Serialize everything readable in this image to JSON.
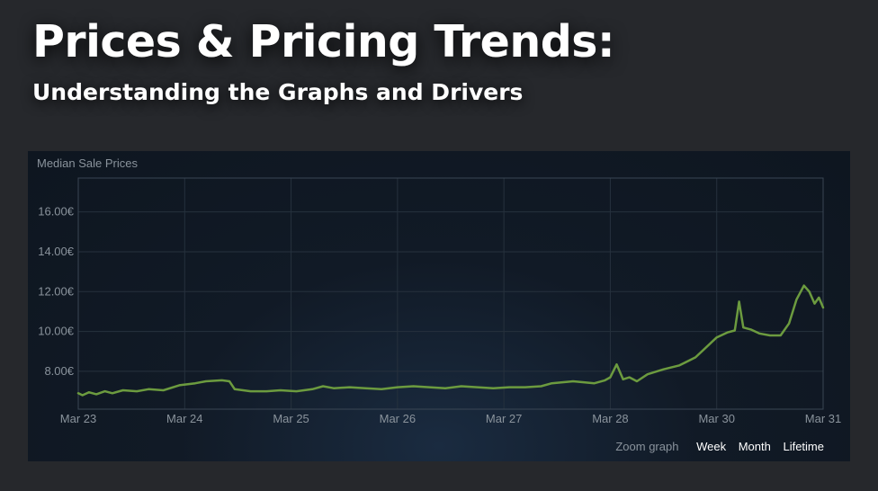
{
  "page": {
    "title": "Prices & Pricing Trends:",
    "subtitle": "Understanding the Graphs and Drivers"
  },
  "chart": {
    "label": "Median Sale Prices",
    "zoom_label": "Zoom graph",
    "zoom_options": [
      "Week",
      "Month",
      "Lifetime"
    ],
    "line_color": "#6c9b3f"
  },
  "chart_data": {
    "type": "line",
    "title": "Median Sale Prices",
    "xlabel": "",
    "ylabel": "",
    "x_tick_labels": [
      "Mar 23",
      "Mar 24",
      "Mar 25",
      "Mar 26",
      "Mar 27",
      "Mar 28",
      "Mar 30",
      "Mar 31"
    ],
    "y_tick_labels": [
      "8.00€",
      "10.00€",
      "12.00€",
      "14.00€",
      "16.00€"
    ],
    "y_ticks": [
      8,
      10,
      12,
      14,
      16
    ],
    "ylim": [
      6.1,
      17.7
    ],
    "xlim": [
      0,
      7
    ],
    "grid": true,
    "series": [
      {
        "values": [
          [
            0.0,
            6.9
          ],
          [
            0.04,
            6.8
          ],
          [
            0.1,
            6.95
          ],
          [
            0.17,
            6.85
          ],
          [
            0.25,
            7.0
          ],
          [
            0.32,
            6.9
          ],
          [
            0.42,
            7.05
          ],
          [
            0.55,
            7.0
          ],
          [
            0.66,
            7.1
          ],
          [
            0.8,
            7.05
          ],
          [
            0.95,
            7.3
          ],
          [
            1.1,
            7.4
          ],
          [
            1.2,
            7.5
          ],
          [
            1.35,
            7.55
          ],
          [
            1.42,
            7.5
          ],
          [
            1.47,
            7.1
          ],
          [
            1.62,
            7.0
          ],
          [
            1.77,
            7.0
          ],
          [
            1.9,
            7.05
          ],
          [
            2.05,
            7.0
          ],
          [
            2.2,
            7.1
          ],
          [
            2.3,
            7.25
          ],
          [
            2.4,
            7.15
          ],
          [
            2.55,
            7.2
          ],
          [
            2.7,
            7.15
          ],
          [
            2.85,
            7.1
          ],
          [
            3.0,
            7.2
          ],
          [
            3.15,
            7.25
          ],
          [
            3.3,
            7.2
          ],
          [
            3.45,
            7.15
          ],
          [
            3.6,
            7.25
          ],
          [
            3.75,
            7.2
          ],
          [
            3.9,
            7.15
          ],
          [
            4.05,
            7.2
          ],
          [
            4.2,
            7.2
          ],
          [
            4.35,
            7.25
          ],
          [
            4.45,
            7.4
          ],
          [
            4.55,
            7.45
          ],
          [
            4.65,
            7.5
          ],
          [
            4.75,
            7.45
          ],
          [
            4.85,
            7.4
          ],
          [
            4.95,
            7.55
          ],
          [
            5.0,
            7.7
          ],
          [
            5.06,
            8.35
          ],
          [
            5.12,
            7.6
          ],
          [
            5.18,
            7.7
          ],
          [
            5.25,
            7.5
          ],
          [
            5.35,
            7.85
          ],
          [
            5.5,
            8.1
          ],
          [
            5.65,
            8.3
          ],
          [
            5.8,
            8.7
          ],
          [
            5.9,
            9.2
          ],
          [
            6.0,
            9.7
          ],
          [
            6.1,
            9.95
          ],
          [
            6.17,
            10.05
          ],
          [
            6.21,
            11.5
          ],
          [
            6.25,
            10.2
          ],
          [
            6.32,
            10.1
          ],
          [
            6.4,
            9.9
          ],
          [
            6.5,
            9.8
          ],
          [
            6.6,
            9.8
          ],
          [
            6.68,
            10.4
          ],
          [
            6.75,
            11.6
          ],
          [
            6.82,
            12.3
          ],
          [
            6.87,
            12.0
          ],
          [
            6.92,
            11.4
          ],
          [
            6.96,
            11.7
          ],
          [
            7.0,
            11.2
          ]
        ]
      }
    ]
  }
}
